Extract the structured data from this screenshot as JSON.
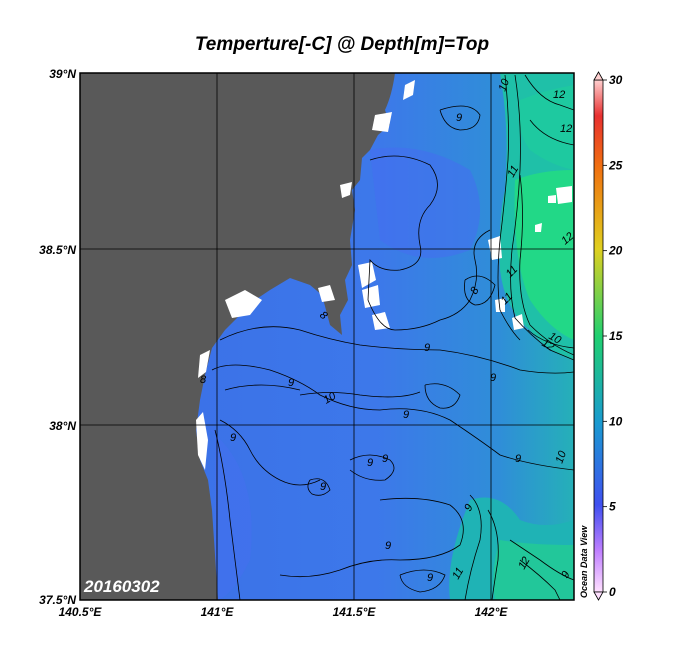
{
  "title": "Temperture[-C] @ Depth[m]=Top",
  "date_stamp": "20160302",
  "watermark": "Ocean Data View",
  "lat_labels": [
    "39°N",
    "38.5°N",
    "38°N",
    "37.5°N"
  ],
  "lon_labels": [
    "140.5°E",
    "141°E",
    "141.5°E",
    "142°E"
  ],
  "colorbar": {
    "min": 0,
    "max": 30,
    "ticks": [
      "30",
      "25",
      "20",
      "15",
      "10",
      "5",
      "0"
    ]
  },
  "contour_labels": [
    "10",
    "12",
    "12",
    "11",
    "12",
    "11",
    "11",
    "8",
    "12",
    "10",
    "9",
    "8",
    "9",
    "9",
    "9",
    "9",
    "9",
    "9",
    "10",
    "9",
    "9",
    "9",
    "9",
    "9",
    "10",
    "9",
    "11",
    "12",
    "9",
    "8"
  ],
  "colors": {
    "land": "#595959",
    "sea_warm": "#2ee08a",
    "sea_mid": "#1ea6c8",
    "sea_cool": "#3d7ae8",
    "sea_cold": "#4a6ef0",
    "missing": "#ffffff"
  }
}
